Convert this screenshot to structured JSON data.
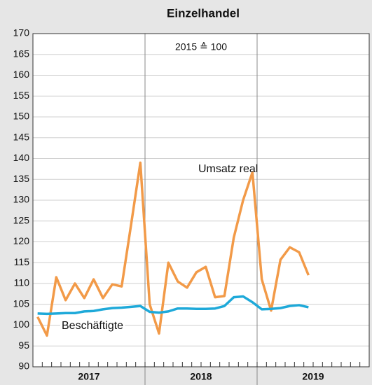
{
  "chart_data": {
    "type": "line",
    "title": "Einzelhandel",
    "annotation": "2015 ≙ 100",
    "categories": [
      null,
      null,
      null,
      null,
      null,
      null,
      null,
      null,
      null,
      null,
      null,
      null,
      null,
      null,
      null,
      null,
      null,
      null,
      null,
      null,
      null,
      null,
      null,
      null,
      null,
      null,
      null,
      null,
      null,
      null,
      null,
      null,
      null,
      null,
      null,
      null
    ],
    "x_groups": [
      "2017",
      "2018",
      "2019"
    ],
    "series": [
      {
        "name": "Umsatz real",
        "color": "#f29a48",
        "values": [
          102,
          97.5,
          111.5,
          106,
          110,
          106.5,
          111,
          106.5,
          109.8,
          109.3,
          124,
          139,
          105,
          98,
          115,
          110.5,
          109,
          112.7,
          114,
          106.7,
          107,
          121,
          130,
          136.7,
          111,
          103.5,
          115.7,
          118.7,
          117.5,
          112,
          null,
          null,
          null,
          null,
          null,
          null
        ]
      },
      {
        "name": "Beschäftigte",
        "color": "#1ea9d9",
        "values": [
          102.8,
          102.7,
          102.8,
          102.9,
          102.9,
          103.3,
          103.4,
          103.8,
          104.1,
          104.2,
          104.4,
          104.6,
          103.2,
          103.0,
          103.3,
          104.0,
          104.0,
          103.9,
          103.9,
          104.0,
          104.6,
          106.7,
          106.9,
          105.5,
          103.8,
          103.9,
          104.1,
          104.6,
          104.8,
          104.3,
          null,
          null,
          null,
          null,
          null,
          null
        ]
      }
    ],
    "ylim": [
      90,
      170
    ],
    "yticks": [
      90,
      95,
      100,
      105,
      110,
      115,
      120,
      125,
      130,
      135,
      140,
      145,
      150,
      155,
      160,
      165,
      170
    ],
    "grid": true
  }
}
